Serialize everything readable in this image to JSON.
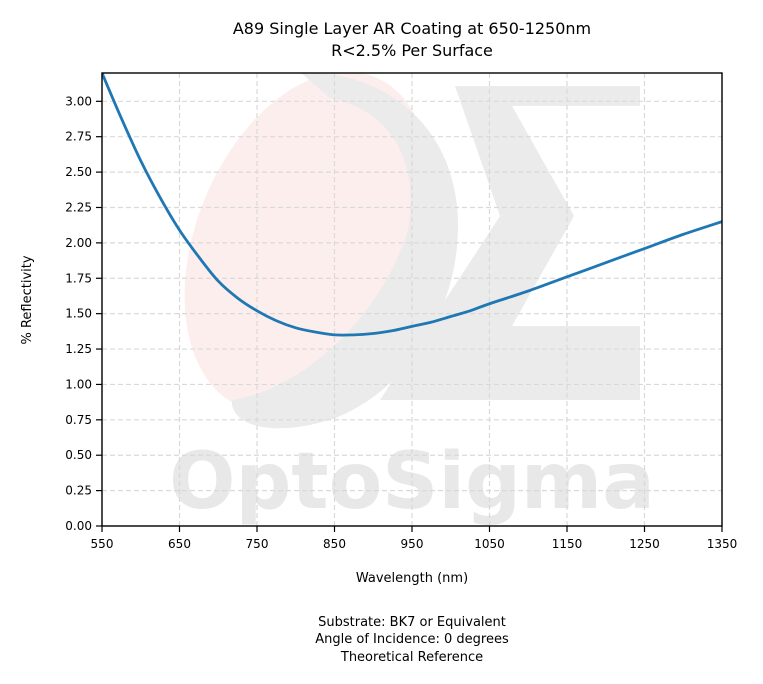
{
  "chart_data": {
    "type": "line",
    "title": [
      "A89 Single Layer AR Coating at 650-1250nm",
      "R<2.5% Per Surface"
    ],
    "xlabel": "Wavelength (nm)",
    "ylabel": "% Reflectivity",
    "xlim": [
      550,
      1350
    ],
    "ylim": [
      0,
      3.2
    ],
    "xticks": [
      "550",
      "650",
      "750",
      "850",
      "950",
      "1050",
      "1150",
      "1250",
      "1350"
    ],
    "yticks": [
      "0.00",
      "0.25",
      "0.50",
      "0.75",
      "1.00",
      "1.25",
      "1.50",
      "1.75",
      "2.00",
      "2.25",
      "2.50",
      "2.75",
      "3.00"
    ],
    "grid": true,
    "series": [
      {
        "color": "#1f77b4",
        "x": [
          550,
          575,
          600,
          625,
          650,
          675,
          700,
          725,
          750,
          775,
          800,
          825,
          850,
          875,
          900,
          925,
          950,
          975,
          1000,
          1025,
          1050,
          1100,
          1150,
          1200,
          1250,
          1300,
          1350
        ],
        "y": [
          3.2,
          2.88,
          2.58,
          2.32,
          2.09,
          1.9,
          1.73,
          1.61,
          1.52,
          1.45,
          1.4,
          1.37,
          1.35,
          1.35,
          1.36,
          1.38,
          1.41,
          1.44,
          1.48,
          1.52,
          1.57,
          1.66,
          1.76,
          1.86,
          1.96,
          2.06,
          2.15
        ]
      }
    ],
    "footer": [
      "Substrate: BK7 or Equivalent",
      "Angle of Incidence: 0 degrees",
      "Theoretical Reference"
    ]
  },
  "watermark": {
    "text": "OptoSigma",
    "oval_color": "#fdeeee",
    "glyph_color": "#ebebeb"
  }
}
